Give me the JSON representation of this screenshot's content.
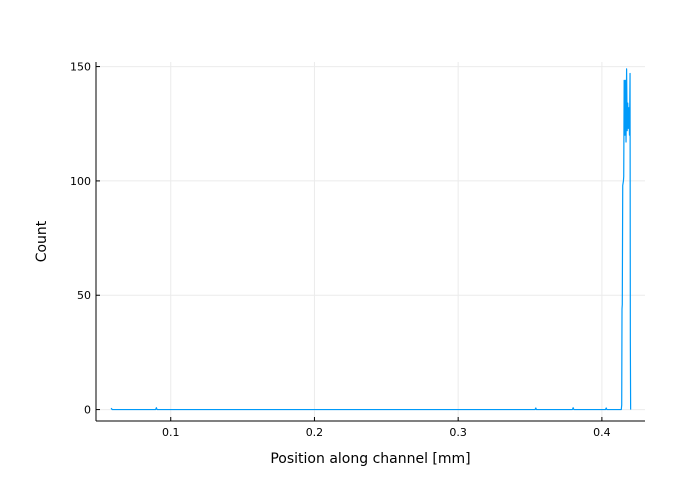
{
  "chart_data": {
    "type": "line",
    "title": "",
    "xlabel": "Position along channel [mm]",
    "ylabel": "Count",
    "xlim": [
      0.048,
      0.43
    ],
    "ylim": [
      -5,
      152
    ],
    "xticks": [
      0.1,
      0.2,
      0.3,
      0.4
    ],
    "xtick_labels": [
      "0.1",
      "0.2",
      "0.3",
      "0.4"
    ],
    "yticks": [
      0,
      50,
      100,
      150
    ],
    "ytick_labels": [
      "0",
      "50",
      "100",
      "150"
    ],
    "grid": true,
    "legend": "none",
    "series": [
      {
        "color": "#009af9",
        "points": [
          [
            0.0585,
            0.6
          ],
          [
            0.0593,
            0
          ],
          [
            0.0895,
            0
          ],
          [
            0.09,
            0.8
          ],
          [
            0.0905,
            0
          ],
          [
            0.3535,
            0
          ],
          [
            0.354,
            0.7
          ],
          [
            0.3545,
            0
          ],
          [
            0.3795,
            0
          ],
          [
            0.38,
            0.8
          ],
          [
            0.3805,
            0
          ],
          [
            0.4025,
            0
          ],
          [
            0.403,
            0.7
          ],
          [
            0.4035,
            0
          ],
          [
            0.4135,
            0
          ],
          [
            0.4138,
            2
          ],
          [
            0.414,
            44
          ],
          [
            0.4142,
            46
          ],
          [
            0.4145,
            98
          ],
          [
            0.415,
            100
          ],
          [
            0.4152,
            102
          ],
          [
            0.4155,
            144
          ],
          [
            0.416,
            120
          ],
          [
            0.4163,
            144
          ],
          [
            0.4168,
            117
          ],
          [
            0.4172,
            149
          ],
          [
            0.4176,
            122
          ],
          [
            0.418,
            134
          ],
          [
            0.4184,
            123
          ],
          [
            0.4188,
            132
          ],
          [
            0.4192,
            120
          ],
          [
            0.4196,
            147
          ],
          [
            0.4198,
            30
          ],
          [
            0.42,
            0
          ]
        ]
      }
    ]
  }
}
